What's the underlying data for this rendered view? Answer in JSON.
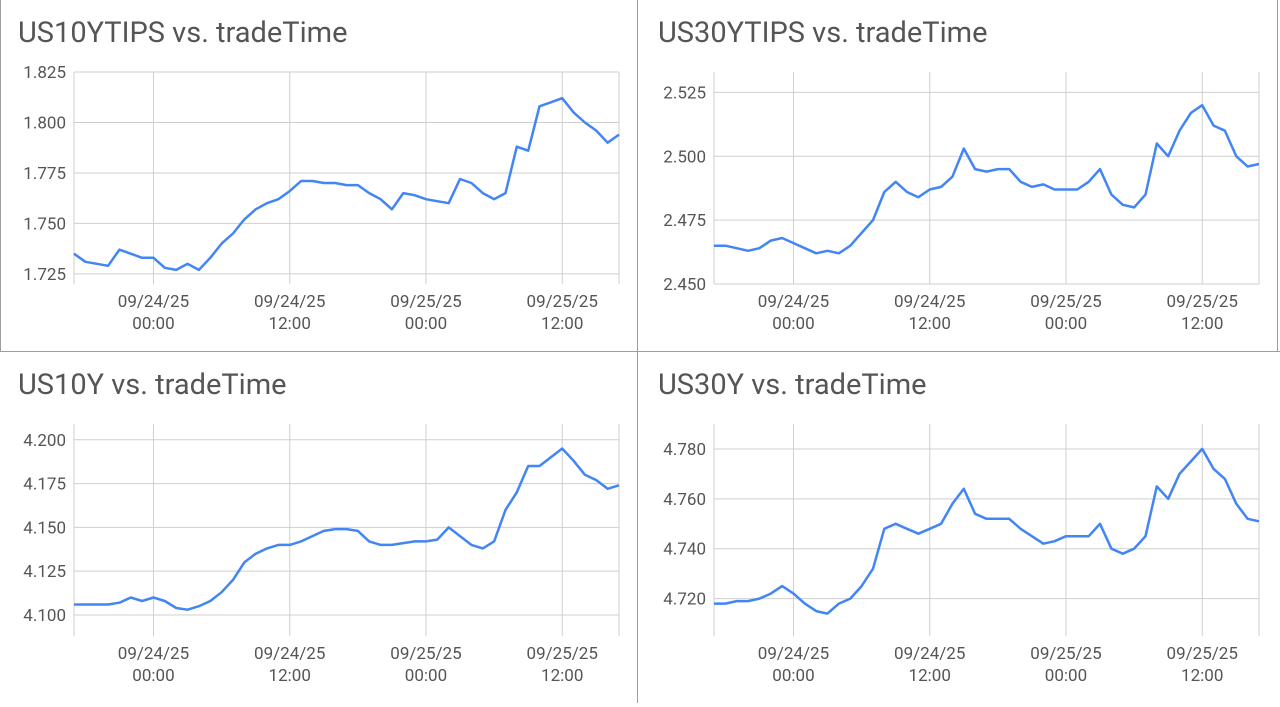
{
  "chart_data": [
    {
      "type": "line",
      "title": "US10YTIPS vs. tradeTime",
      "color": "#4285f4",
      "grid": true,
      "x": [
        "09/23/25 17:00",
        "09/23/25 18:00",
        "09/23/25 19:00",
        "09/23/25 20:00",
        "09/23/25 21:00",
        "09/23/25 22:00",
        "09/23/25 23:00",
        "09/24/25 00:00",
        "09/24/25 01:00",
        "09/24/25 02:00",
        "09/24/25 03:00",
        "09/24/25 04:00",
        "09/24/25 05:00",
        "09/24/25 06:00",
        "09/24/25 07:00",
        "09/24/25 08:00",
        "09/24/25 09:00",
        "09/24/25 10:00",
        "09/24/25 11:00",
        "09/24/25 12:00",
        "09/24/25 13:00",
        "09/24/25 14:00",
        "09/24/25 15:00",
        "09/24/25 16:00",
        "09/24/25 17:00",
        "09/24/25 18:00",
        "09/24/25 19:00",
        "09/24/25 20:00",
        "09/24/25 21:00",
        "09/24/25 22:00",
        "09/24/25 23:00",
        "09/25/25 00:00",
        "09/25/25 01:00",
        "09/25/25 02:00",
        "09/25/25 03:00",
        "09/25/25 04:00",
        "09/25/25 05:00",
        "09/25/25 06:00",
        "09/25/25 07:00",
        "09/25/25 08:00",
        "09/25/25 09:00",
        "09/25/25 10:00",
        "09/25/25 11:00",
        "09/25/25 12:00",
        "09/25/25 13:00",
        "09/25/25 14:00",
        "09/25/25 15:00",
        "09/25/25 16:00",
        "09/25/25 17:00"
      ],
      "values": [
        1.735,
        1.731,
        1.73,
        1.729,
        1.737,
        1.735,
        1.733,
        1.733,
        1.728,
        1.727,
        1.73,
        1.727,
        1.733,
        1.74,
        1.745,
        1.752,
        1.757,
        1.76,
        1.762,
        1.766,
        1.771,
        1.771,
        1.77,
        1.77,
        1.769,
        1.769,
        1.765,
        1.762,
        1.757,
        1.765,
        1.764,
        1.762,
        1.761,
        1.76,
        1.772,
        1.77,
        1.765,
        1.762,
        1.765,
        1.788,
        1.786,
        1.808,
        1.81,
        1.812,
        1.805,
        1.8,
        1.796,
        1.79,
        1.794
      ],
      "xlim": [
        "09/23/25 17:00",
        "09/25/25 17:00"
      ],
      "xticks": [
        {
          "value": "09/24/25 00:00",
          "label": [
            "09/24/25",
            "00:00"
          ]
        },
        {
          "value": "09/24/25 12:00",
          "label": [
            "09/24/25",
            "12:00"
          ]
        },
        {
          "value": "09/25/25 00:00",
          "label": [
            "09/25/25",
            "00:00"
          ]
        },
        {
          "value": "09/25/25 12:00",
          "label": [
            "09/25/25",
            "12:00"
          ]
        }
      ],
      "ylim": [
        1.72,
        1.825
      ],
      "yticks": [
        1.725,
        {
          "value": 1.75,
          "label": "1.750"
        },
        1.775,
        {
          "value": 1.8,
          "label": "1.800"
        },
        1.825
      ]
    },
    {
      "type": "line",
      "title": "US30YTIPS vs. tradeTime",
      "color": "#4285f4",
      "grid": true,
      "x": [
        "09/23/25 17:00",
        "09/23/25 18:00",
        "09/23/25 19:00",
        "09/23/25 20:00",
        "09/23/25 21:00",
        "09/23/25 22:00",
        "09/23/25 23:00",
        "09/24/25 00:00",
        "09/24/25 01:00",
        "09/24/25 02:00",
        "09/24/25 03:00",
        "09/24/25 04:00",
        "09/24/25 05:00",
        "09/24/25 06:00",
        "09/24/25 07:00",
        "09/24/25 08:00",
        "09/24/25 09:00",
        "09/24/25 10:00",
        "09/24/25 11:00",
        "09/24/25 12:00",
        "09/24/25 13:00",
        "09/24/25 14:00",
        "09/24/25 15:00",
        "09/24/25 16:00",
        "09/24/25 17:00",
        "09/24/25 18:00",
        "09/24/25 19:00",
        "09/24/25 20:00",
        "09/24/25 21:00",
        "09/24/25 22:00",
        "09/24/25 23:00",
        "09/25/25 00:00",
        "09/25/25 01:00",
        "09/25/25 02:00",
        "09/25/25 03:00",
        "09/25/25 04:00",
        "09/25/25 05:00",
        "09/25/25 06:00",
        "09/25/25 07:00",
        "09/25/25 08:00",
        "09/25/25 09:00",
        "09/25/25 10:00",
        "09/25/25 11:00",
        "09/25/25 12:00",
        "09/25/25 13:00",
        "09/25/25 14:00",
        "09/25/25 15:00",
        "09/25/25 16:00",
        "09/25/25 17:00"
      ],
      "values": [
        2.465,
        2.465,
        2.464,
        2.463,
        2.464,
        2.467,
        2.468,
        2.466,
        2.464,
        2.462,
        2.463,
        2.462,
        2.465,
        2.47,
        2.475,
        2.486,
        2.49,
        2.486,
        2.484,
        2.487,
        2.488,
        2.492,
        2.503,
        2.495,
        2.494,
        2.495,
        2.495,
        2.49,
        2.488,
        2.489,
        2.487,
        2.487,
        2.487,
        2.49,
        2.495,
        2.485,
        2.481,
        2.48,
        2.485,
        2.505,
        2.5,
        2.51,
        2.517,
        2.52,
        2.512,
        2.51,
        2.5,
        2.496,
        2.497
      ],
      "xlim": [
        "09/23/25 17:00",
        "09/25/25 17:00"
      ],
      "xticks": [
        {
          "value": "09/24/25 00:00",
          "label": [
            "09/24/25",
            "00:00"
          ]
        },
        {
          "value": "09/24/25 12:00",
          "label": [
            "09/24/25",
            "12:00"
          ]
        },
        {
          "value": "09/25/25 00:00",
          "label": [
            "09/25/25",
            "00:00"
          ]
        },
        {
          "value": "09/25/25 12:00",
          "label": [
            "09/25/25",
            "12:00"
          ]
        }
      ],
      "ylim": [
        2.45,
        2.533
      ],
      "yticks": [
        {
          "value": 2.45,
          "label": "2.450"
        },
        2.475,
        {
          "value": 2.5,
          "label": "2.500"
        },
        2.525
      ]
    },
    {
      "type": "line",
      "title": "US10Y vs. tradeTime",
      "color": "#4285f4",
      "grid": true,
      "x": [
        "09/23/25 17:00",
        "09/23/25 18:00",
        "09/23/25 19:00",
        "09/23/25 20:00",
        "09/23/25 21:00",
        "09/23/25 22:00",
        "09/23/25 23:00",
        "09/24/25 00:00",
        "09/24/25 01:00",
        "09/24/25 02:00",
        "09/24/25 03:00",
        "09/24/25 04:00",
        "09/24/25 05:00",
        "09/24/25 06:00",
        "09/24/25 07:00",
        "09/24/25 08:00",
        "09/24/25 09:00",
        "09/24/25 10:00",
        "09/24/25 11:00",
        "09/24/25 12:00",
        "09/24/25 13:00",
        "09/24/25 14:00",
        "09/24/25 15:00",
        "09/24/25 16:00",
        "09/24/25 17:00",
        "09/24/25 18:00",
        "09/24/25 19:00",
        "09/24/25 20:00",
        "09/24/25 21:00",
        "09/24/25 22:00",
        "09/24/25 23:00",
        "09/25/25 00:00",
        "09/25/25 01:00",
        "09/25/25 02:00",
        "09/25/25 03:00",
        "09/25/25 04:00",
        "09/25/25 05:00",
        "09/25/25 06:00",
        "09/25/25 07:00",
        "09/25/25 08:00",
        "09/25/25 09:00",
        "09/25/25 10:00",
        "09/25/25 11:00",
        "09/25/25 12:00",
        "09/25/25 13:00",
        "09/25/25 14:00",
        "09/25/25 15:00",
        "09/25/25 16:00",
        "09/25/25 17:00"
      ],
      "values": [
        4.106,
        4.106,
        4.106,
        4.106,
        4.107,
        4.11,
        4.108,
        4.11,
        4.108,
        4.104,
        4.103,
        4.105,
        4.108,
        4.113,
        4.12,
        4.13,
        4.135,
        4.138,
        4.14,
        4.14,
        4.142,
        4.145,
        4.148,
        4.149,
        4.149,
        4.148,
        4.142,
        4.14,
        4.14,
        4.141,
        4.142,
        4.142,
        4.143,
        4.15,
        4.145,
        4.14,
        4.138,
        4.142,
        4.16,
        4.17,
        4.185,
        4.185,
        4.19,
        4.195,
        4.188,
        4.18,
        4.177,
        4.172,
        4.174
      ],
      "xlim": [
        "09/23/25 17:00",
        "09/25/25 17:00"
      ],
      "xticks": [
        {
          "value": "09/24/25 00:00",
          "label": [
            "09/24/25",
            "00:00"
          ]
        },
        {
          "value": "09/24/25 12:00",
          "label": [
            "09/24/25",
            "12:00"
          ]
        },
        {
          "value": "09/25/25 00:00",
          "label": [
            "09/25/25",
            "00:00"
          ]
        },
        {
          "value": "09/25/25 12:00",
          "label": [
            "09/25/25",
            "12:00"
          ]
        }
      ],
      "ylim": [
        4.088,
        4.209
      ],
      "yticks": [
        {
          "value": 4.1,
          "label": "4.100"
        },
        4.125,
        {
          "value": 4.15,
          "label": "4.150"
        },
        4.175,
        {
          "value": 4.2,
          "label": "4.200"
        }
      ]
    },
    {
      "type": "line",
      "title": "US30Y vs. tradeTime",
      "color": "#4285f4",
      "grid": true,
      "x": [
        "09/23/25 17:00",
        "09/23/25 18:00",
        "09/23/25 19:00",
        "09/23/25 20:00",
        "09/23/25 21:00",
        "09/23/25 22:00",
        "09/23/25 23:00",
        "09/24/25 00:00",
        "09/24/25 01:00",
        "09/24/25 02:00",
        "09/24/25 03:00",
        "09/24/25 04:00",
        "09/24/25 05:00",
        "09/24/25 06:00",
        "09/24/25 07:00",
        "09/24/25 08:00",
        "09/24/25 09:00",
        "09/24/25 10:00",
        "09/24/25 11:00",
        "09/24/25 12:00",
        "09/24/25 13:00",
        "09/24/25 14:00",
        "09/24/25 15:00",
        "09/24/25 16:00",
        "09/24/25 17:00",
        "09/24/25 18:00",
        "09/24/25 19:00",
        "09/24/25 20:00",
        "09/24/25 21:00",
        "09/24/25 22:00",
        "09/24/25 23:00",
        "09/25/25 00:00",
        "09/25/25 01:00",
        "09/25/25 02:00",
        "09/25/25 03:00",
        "09/25/25 04:00",
        "09/25/25 05:00",
        "09/25/25 06:00",
        "09/25/25 07:00",
        "09/25/25 08:00",
        "09/25/25 09:00",
        "09/25/25 10:00",
        "09/25/25 11:00",
        "09/25/25 12:00",
        "09/25/25 13:00",
        "09/25/25 14:00",
        "09/25/25 15:00",
        "09/25/25 16:00",
        "09/25/25 17:00"
      ],
      "values": [
        4.718,
        4.718,
        4.719,
        4.719,
        4.72,
        4.722,
        4.725,
        4.722,
        4.718,
        4.715,
        4.714,
        4.718,
        4.72,
        4.725,
        4.732,
        4.748,
        4.75,
        4.748,
        4.746,
        4.748,
        4.75,
        4.758,
        4.764,
        4.754,
        4.752,
        4.752,
        4.752,
        4.748,
        4.745,
        4.742,
        4.743,
        4.745,
        4.745,
        4.745,
        4.75,
        4.74,
        4.738,
        4.74,
        4.745,
        4.765,
        4.76,
        4.77,
        4.775,
        4.78,
        4.772,
        4.768,
        4.758,
        4.752,
        4.751
      ],
      "xlim": [
        "09/23/25 17:00",
        "09/25/25 17:00"
      ],
      "xticks": [
        {
          "value": "09/24/25 00:00",
          "label": [
            "09/24/25",
            "00:00"
          ]
        },
        {
          "value": "09/24/25 12:00",
          "label": [
            "09/24/25",
            "12:00"
          ]
        },
        {
          "value": "09/25/25 00:00",
          "label": [
            "09/25/25",
            "00:00"
          ]
        },
        {
          "value": "09/25/25 12:00",
          "label": [
            "09/25/25",
            "12:00"
          ]
        }
      ],
      "ylim": [
        4.705,
        4.79
      ],
      "yticks": [
        {
          "value": 4.72,
          "label": "4.720"
        },
        {
          "value": 4.74,
          "label": "4.740"
        },
        {
          "value": 4.76,
          "label": "4.760"
        },
        {
          "value": 4.78,
          "label": "4.780"
        }
      ]
    }
  ]
}
